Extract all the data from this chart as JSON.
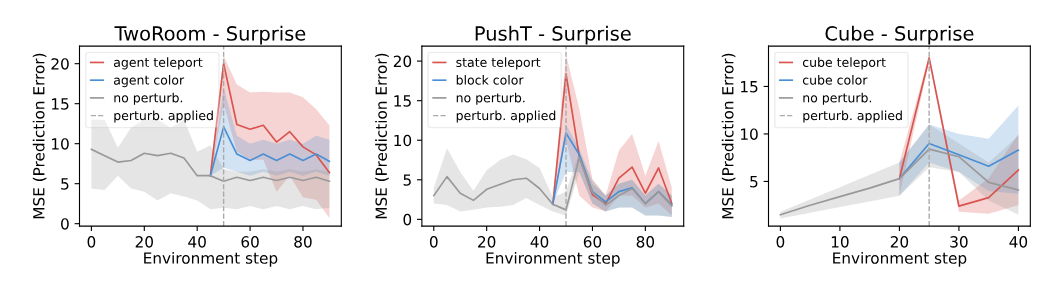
{
  "chart_data": [
    {
      "type": "line",
      "title": "TwoRoom - Surprise",
      "xlabel": "Environment step",
      "ylabel": "MSE (Prediction Error)",
      "xlim": [
        -4.5,
        94.5
      ],
      "ylim": [
        -0.3,
        22.2
      ],
      "xticks": [
        0,
        20,
        40,
        60,
        80
      ],
      "yticks": [
        0,
        5,
        10,
        15,
        20
      ],
      "grid": false,
      "legend": "top left",
      "marker": "none",
      "line_style": "solid",
      "series": [
        {
          "name": "agent teleport",
          "color": "#d9534f",
          "x": [
            45,
            50,
            55,
            60,
            65,
            70,
            75,
            80,
            85,
            90
          ],
          "values": [
            6.0,
            20,
            12.4,
            11.8,
            12.3,
            10.2,
            11.5,
            9.6,
            8.6,
            6.4
          ],
          "upper": [
            6.0,
            21,
            17.4,
            16.4,
            16.5,
            16.4,
            16.4,
            15.8,
            14.3,
            12.3
          ],
          "lower": [
            6.0,
            15,
            9,
            8,
            8,
            4,
            6,
            3.3,
            3,
            0.7
          ]
        },
        {
          "name": "agent color",
          "color": "#4a8fd4",
          "x": [
            45,
            50,
            55,
            60,
            65,
            70,
            75,
            80,
            85,
            90
          ],
          "values": [
            6.0,
            12.1,
            8.7,
            7.9,
            8.7,
            7.9,
            8.7,
            7.9,
            8.7,
            7.8
          ],
          "upper": [
            6.0,
            17,
            11,
            10,
            10.5,
            10,
            10.5,
            10,
            11,
            10.5
          ],
          "lower": [
            6.0,
            7,
            6.5,
            6,
            6.5,
            6,
            6.5,
            6,
            6.5,
            6
          ]
        },
        {
          "name": "no perturb.",
          "color": "#999999",
          "x": [
            0,
            5,
            10,
            15,
            20,
            25,
            30,
            35,
            40,
            45,
            50,
            55,
            60,
            65,
            70,
            75,
            80,
            85,
            90
          ],
          "values": [
            9.3,
            8.5,
            7.7,
            7.9,
            8.8,
            8.5,
            8.8,
            8.2,
            6.0,
            6.0,
            5.3,
            5.8,
            5.4,
            5.8,
            5.4,
            5.8,
            5.4,
            5.8,
            5.3
          ],
          "upper": [
            13,
            13,
            9.5,
            12,
            13,
            13,
            12,
            13,
            9,
            9.8,
            6.8,
            6.5,
            6.5,
            6.8,
            6.5,
            6.8,
            6.5,
            6.8,
            6.5
          ],
          "lower": [
            4.4,
            4.2,
            6,
            4.4,
            4,
            2.9,
            3.8,
            3.4,
            2.9,
            1.8,
            2,
            1.8,
            2.2,
            1.8,
            2.2,
            1.8,
            2.2,
            1.8,
            2
          ]
        }
      ],
      "ref_lines": [
        {
          "axis": "x",
          "value": 50,
          "label": "perturb. applied",
          "color": "#aaaaaa",
          "line_style": "dashed"
        }
      ]
    },
    {
      "type": "line",
      "title": "PushT - Surprise",
      "xlabel": "Environment step",
      "ylabel": "MSE (Prediction Error)",
      "xlim": [
        -4.5,
        94.5
      ],
      "ylim": [
        -0.85,
        21.9
      ],
      "xticks": [
        0,
        20,
        40,
        60,
        80
      ],
      "yticks": [
        0,
        5,
        10,
        15,
        20
      ],
      "grid": false,
      "legend": "top left",
      "marker": "none",
      "line_style": "solid",
      "series": [
        {
          "name": "state teleport",
          "color": "#d9534f",
          "x": [
            45,
            50,
            55,
            60,
            65,
            70,
            75,
            80,
            85,
            90
          ],
          "values": [
            1.9,
            18.4,
            8,
            3.1,
            2,
            5.2,
            6.6,
            3.3,
            6.5,
            2
          ],
          "upper": [
            1.9,
            20.8,
            14,
            5,
            3,
            8.7,
            10.8,
            5.5,
            9.9,
            4
          ],
          "lower": [
            1.9,
            10,
            3,
            1.5,
            1,
            3,
            3,
            1.5,
            2,
            0.5
          ]
        },
        {
          "name": "block color",
          "color": "#4a8fd4",
          "x": [
            45,
            50,
            55,
            60,
            65,
            70,
            75,
            80,
            85,
            90
          ],
          "values": [
            1.9,
            10.9,
            8.2,
            3.5,
            2.2,
            3.5,
            4,
            2,
            3.5,
            1.8
          ],
          "upper": [
            1.9,
            12,
            9,
            4.5,
            3,
            4.5,
            5,
            3,
            4.5,
            3
          ],
          "lower": [
            1.9,
            6,
            6,
            2,
            1,
            1.5,
            1.5,
            0.5,
            0.5,
            0.3
          ]
        },
        {
          "name": "no perturb.",
          "color": "#999999",
          "x": [
            0,
            5,
            10,
            15,
            20,
            25,
            30,
            35,
            40,
            45,
            50,
            55,
            60,
            65,
            70,
            75,
            80,
            85,
            90
          ],
          "values": [
            3,
            5.4,
            3.3,
            2.4,
            3.8,
            4.4,
            5,
            5.2,
            3.9,
            1.9,
            1.2,
            7.8,
            3.4,
            1.8,
            3,
            3.9,
            2,
            3.5,
            1.7
          ],
          "upper": [
            4,
            9,
            6,
            3.6,
            6.2,
            7.5,
            8.2,
            7.6,
            6.5,
            2.8,
            3.5,
            8.5,
            5,
            3,
            4.5,
            5,
            3,
            4.5,
            3
          ],
          "lower": [
            2,
            1.8,
            1,
            1.2,
            1.5,
            1.6,
            1.8,
            2.7,
            1.8,
            1,
            0.5,
            6,
            2,
            1,
            1.5,
            1.5,
            0.5,
            0.5,
            0.3
          ]
        }
      ],
      "ref_lines": [
        {
          "axis": "x",
          "value": 50,
          "label": "perturb. applied",
          "color": "#aaaaaa",
          "line_style": "dashed"
        }
      ]
    },
    {
      "type": "line",
      "title": "Cube - Surprise",
      "xlabel": "Environment step",
      "ylabel": "MSE (Prediction Error)",
      "xlim": [
        -2,
        42
      ],
      "ylim": [
        0.3,
        19.25
      ],
      "xticks": [
        0,
        10,
        20,
        30,
        40
      ],
      "yticks": [
        5,
        10,
        15
      ],
      "grid": false,
      "legend": "top left",
      "marker": "none",
      "line_style": "solid",
      "series": [
        {
          "name": "cube teleport",
          "color": "#d9534f",
          "x": [
            20,
            25,
            30,
            35,
            40
          ],
          "values": [
            5.3,
            18,
            2.4,
            3.3,
            6.2
          ],
          "upper": [
            7,
            18.3,
            3,
            5.3,
            10
          ],
          "lower": [
            3.5,
            17.6,
            1.8,
            1.6,
            2.5
          ]
        },
        {
          "name": "cube color",
          "color": "#4a8fd4",
          "x": [
            20,
            25,
            30,
            35,
            40
          ],
          "values": [
            5.3,
            9,
            7.8,
            6.6,
            8.3
          ],
          "upper": [
            7,
            11,
            10,
            9.5,
            13
          ],
          "lower": [
            3.5,
            7,
            6,
            4,
            3.7
          ]
        },
        {
          "name": "no perturb.",
          "color": "#999999",
          "x": [
            0,
            5,
            10,
            15,
            20,
            25,
            30,
            35,
            40
          ],
          "values": [
            1.5,
            2.5,
            3.4,
            4.3,
            5.3,
            8.4,
            7.6,
            4.9,
            4.1
          ],
          "upper": [
            1.8,
            3.1,
            4.4,
            5.7,
            7,
            11,
            9,
            7,
            9.8
          ],
          "lower": [
            1.1,
            1.7,
            2.3,
            2.9,
            3.5,
            6.5,
            6,
            3,
            1.5
          ]
        }
      ],
      "ref_lines": [
        {
          "axis": "x",
          "value": 25,
          "label": "perturb. applied",
          "color": "#aaaaaa",
          "line_style": "dashed"
        }
      ]
    }
  ]
}
